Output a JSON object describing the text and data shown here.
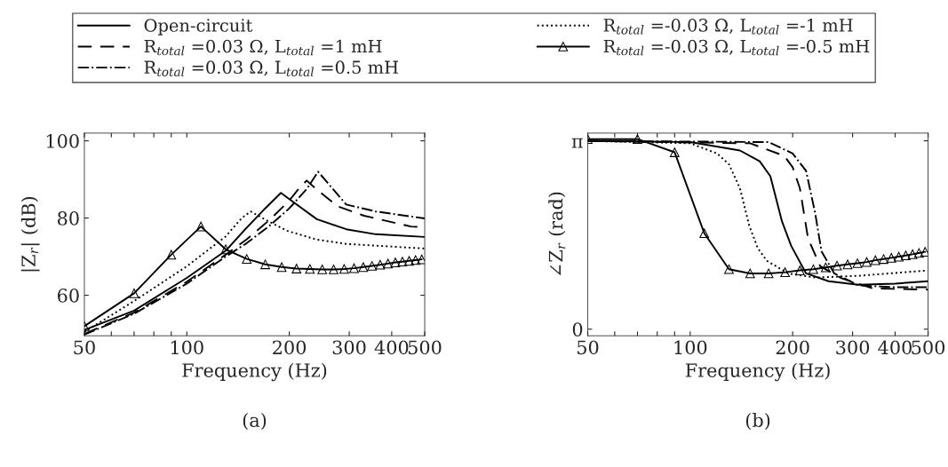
{
  "chart_data": [
    {
      "type": "line",
      "xlabel": "Frequency (Hz)",
      "ylabel": "|Z$_{r}$| (dB)",
      "log": "x",
      "xlim": [
        50,
        500
      ],
      "ylim": [
        49.5,
        102
      ],
      "xticks": [
        50,
        {
          "value": 60,
          "label": null
        },
        {
          "value": 70,
          "label": null
        },
        {
          "value": 80,
          "label": null
        },
        {
          "value": 90,
          "label": null
        },
        100,
        200,
        300,
        400,
        500
      ],
      "yticks": [
        60,
        80,
        100
      ],
      "grid": false,
      "legend": "top",
      "annotations": [
        "(a)"
      ],
      "series": [
        {
          "name": "Open-circuit",
          "color": "#000000",
          "line_style": "solid",
          "x": [
            50,
            70,
            100,
            130,
            150,
            170,
            189,
            205,
            241,
            294,
            359,
            500
          ],
          "values": [
            51,
            56,
            64.5,
            71.5,
            77.5,
            82.5,
            86.5,
            84.2,
            79.7,
            77.1,
            75.8,
            75.1
          ]
        },
        {
          "name": "R$_{total}$ =0.03 Ω, L$_{total}$ =1 mH",
          "color": "#000000",
          "line_style": "dashed",
          "x": [
            50,
            70,
            100,
            130,
            150,
            175,
            200,
            215,
            225,
            240,
            278,
            332,
            455,
            500
          ],
          "values": [
            50,
            55.5,
            63.5,
            70.5,
            74.5,
            79.5,
            84.5,
            88,
            89.7,
            87.5,
            83,
            80.6,
            77.8,
            77.6
          ]
        },
        {
          "name": "R$_{total}$ =0.03 Ω, L$_{total}$ =0.5 mH",
          "color": "#000000",
          "line_style": "dashdot",
          "x": [
            50,
            70,
            100,
            130,
            150,
            175,
            200,
            225,
            243,
            260,
            294,
            359,
            500
          ],
          "values": [
            49.8,
            55.2,
            63,
            70,
            73.5,
            78,
            82.5,
            87.5,
            92,
            89,
            83.5,
            81.7,
            79.9
          ]
        },
        {
          "name": "R$_{total}$ =-0.03 Ω, L$_{total}$ =-1 mH",
          "color": "#000000",
          "line_style": "dotted",
          "x": [
            50,
            70,
            100,
            130,
            145,
            154,
            175,
            197,
            241,
            294,
            500
          ],
          "values": [
            50.5,
            58.5,
            67.5,
            75.2,
            80,
            81.7,
            79,
            76.7,
            74.4,
            73.3,
            72.1
          ]
        },
        {
          "name": "R$_{total}$ =-0.03 Ω, L$_{total}$ =-0.5 mH",
          "color": "#000000",
          "line_style": "solid",
          "marker": "triangle",
          "x": [
            50,
            70,
            90,
            110,
            130,
            150,
            170,
            190,
            210,
            230,
            250,
            270,
            290,
            310,
            330,
            350,
            370,
            390,
            410,
            430,
            450,
            470,
            490
          ],
          "values": [
            52,
            60.5,
            70.5,
            77.8,
            71.9,
            69.4,
            68,
            67.3,
            66.9,
            66.8,
            66.7,
            66.7,
            66.8,
            67,
            67.3,
            67.6,
            67.9,
            68.2,
            68.5,
            68.7,
            68.9,
            69.1,
            69.3
          ]
        }
      ]
    },
    {
      "type": "line",
      "xlabel": "Frequency (Hz)",
      "ylabel": "∠Z$_{r}$ (rad)",
      "log": "x",
      "xlim": [
        50,
        500
      ],
      "ylim": [
        -0.11,
        3.27
      ],
      "xticks": [
        50,
        {
          "value": 60,
          "label": null
        },
        {
          "value": 70,
          "label": null
        },
        {
          "value": 80,
          "label": null
        },
        {
          "value": 90,
          "label": null
        },
        100,
        200,
        300,
        400,
        500
      ],
      "yticks": [
        0,
        {
          "value": 3.1416,
          "label": "π"
        }
      ],
      "grid": false,
      "annotations": [
        "(b)"
      ],
      "series": [
        {
          "color": "#000000",
          "line_style": "solid",
          "x": [
            50,
            100,
            140,
            160,
            172,
            186,
            198,
            219,
            255,
            312,
            400,
            500
          ],
          "values": [
            3.14,
            3.12,
            2.98,
            2.8,
            2.55,
            1.8,
            1.39,
            0.93,
            0.8,
            0.74,
            0.76,
            0.8
          ]
        },
        {
          "color": "#000000",
          "line_style": "dashed",
          "x": [
            50,
            150,
            189,
            200,
            210,
            222,
            241,
            278,
            344,
            500
          ],
          "values": [
            3.14,
            3.1,
            2.89,
            2.7,
            2.35,
            1.51,
            1.05,
            0.85,
            0.68,
            0.66
          ]
        },
        {
          "color": "#000000",
          "line_style": "dashdot",
          "x": [
            50,
            170,
            200,
            219,
            233,
            243,
            265,
            312,
            400,
            500
          ],
          "values": [
            3.14,
            3.12,
            2.93,
            2.64,
            1.93,
            1.3,
            0.93,
            0.73,
            0.7,
            0.7
          ]
        },
        {
          "color": "#000000",
          "line_style": "dotted",
          "x": [
            50,
            100,
            120,
            130,
            140,
            149,
            158,
            168,
            194,
            233,
            312,
            500
          ],
          "values": [
            3.14,
            3.1,
            2.93,
            2.75,
            2.35,
            1.73,
            1.35,
            1.14,
            0.93,
            0.86,
            0.89,
            0.98
          ]
        },
        {
          "color": "#000000",
          "line_style": "solid",
          "marker": "triangle",
          "x": [
            50,
            70,
            90,
            110,
            130,
            150,
            170,
            190,
            210,
            230,
            250,
            270,
            290,
            310,
            330,
            350,
            370,
            390,
            410,
            430,
            450,
            470,
            490
          ],
          "values": [
            3.17,
            3.17,
            2.95,
            1.6,
            1.0,
            0.93,
            0.93,
            0.95,
            0.98,
            1.0,
            1.03,
            1.06,
            1.08,
            1.1,
            1.12,
            1.15,
            1.17,
            1.19,
            1.21,
            1.23,
            1.25,
            1.27,
            1.29
          ]
        }
      ]
    }
  ]
}
